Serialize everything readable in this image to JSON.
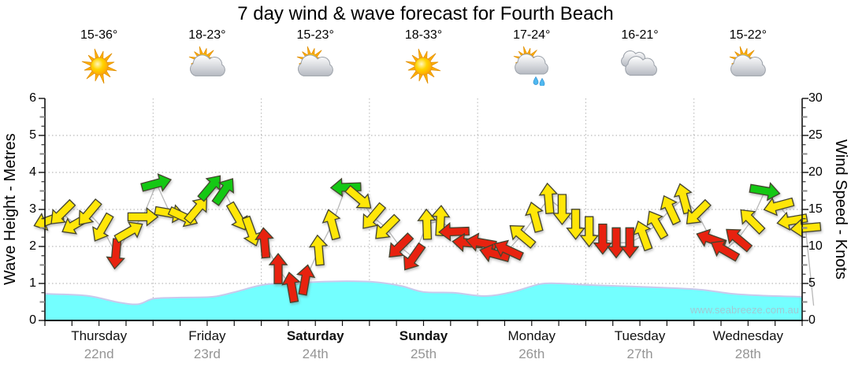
{
  "title": "7 day wind & wave forecast for Fourth Beach",
  "watermark": "www.seabreeze.com.au",
  "axes": {
    "left_title": "Wave Height - Metres",
    "right_title": "Wind Speed - Knots",
    "left_tick_labels": [
      "6",
      "5",
      "4",
      "3",
      "2",
      "1",
      "0"
    ],
    "right_tick_labels": [
      "30",
      "25",
      "20",
      "15",
      "10",
      "5",
      "0"
    ]
  },
  "days": [
    {
      "name": "Thursday",
      "date": "22nd",
      "temp": "15-36°",
      "icon": "sunny",
      "bold": false
    },
    {
      "name": "Friday",
      "date": "23rd",
      "temp": "18-23°",
      "icon": "partly-cloudy",
      "bold": false
    },
    {
      "name": "Saturday",
      "date": "24th",
      "temp": "15-23°",
      "icon": "partly-cloudy",
      "bold": true
    },
    {
      "name": "Sunday",
      "date": "25th",
      "temp": "18-33°",
      "icon": "sunny",
      "bold": true
    },
    {
      "name": "Monday",
      "date": "26th",
      "temp": "17-24°",
      "icon": "sun-shower",
      "bold": false
    },
    {
      "name": "Tuesday",
      "date": "27th",
      "temp": "16-21°",
      "icon": "cloudy",
      "bold": false
    },
    {
      "name": "Wednesday",
      "date": "28th",
      "temp": "15-22°",
      "icon": "partly-cloudy",
      "bold": false
    }
  ],
  "chart_data": {
    "type": "area+wind-arrows",
    "title": "7 day wind & wave forecast for Fourth Beach",
    "left_axis": {
      "label": "Wave Height - Metres",
      "range": [
        0,
        6
      ],
      "unit": "m",
      "gridlines": [
        1,
        2,
        3,
        4,
        5
      ]
    },
    "right_axis": {
      "label": "Wind Speed - Knots",
      "range": [
        0,
        30
      ],
      "unit": "kn"
    },
    "x_axis": {
      "day_labels": [
        "Thursday 22nd",
        "Friday 23rd",
        "Saturday 24th",
        "Sunday 25th",
        "Monday 26th",
        "Tuesday 27th",
        "Wednesday 28th"
      ],
      "minor_ticks_per_day": 4
    },
    "wave_height_m_series_t01": [
      [
        0.0,
        0.72
      ],
      [
        0.055,
        0.67
      ],
      [
        0.097,
        0.49
      ],
      [
        0.123,
        0.44
      ],
      [
        0.144,
        0.59
      ],
      [
        0.18,
        0.62
      ],
      [
        0.222,
        0.64
      ],
      [
        0.253,
        0.78
      ],
      [
        0.291,
        0.97
      ],
      [
        0.347,
        1.03
      ],
      [
        0.399,
        1.06
      ],
      [
        0.44,
        1.03
      ],
      [
        0.471,
        0.93
      ],
      [
        0.5,
        0.77
      ],
      [
        0.539,
        0.75
      ],
      [
        0.581,
        0.66
      ],
      [
        0.617,
        0.77
      ],
      [
        0.653,
        0.98
      ],
      [
        0.679,
        1.0
      ],
      [
        0.716,
        0.96
      ],
      [
        0.773,
        0.92
      ],
      [
        0.836,
        0.87
      ],
      [
        0.872,
        0.82
      ],
      [
        0.908,
        0.72
      ],
      [
        0.95,
        0.67
      ],
      [
        1.0,
        0.64
      ]
    ],
    "wind_arrow_format": "[day_index, slot_of_8, knots, direction_deg_cw_from_up, color(y/r/g, line=polyline-only)]",
    "wind_arrows": [
      [
        0,
        0,
        13.5,
        250,
        "y"
      ],
      [
        0,
        1,
        14.5,
        225,
        "y"
      ],
      [
        0,
        2,
        13,
        240,
        "y"
      ],
      [
        0,
        3,
        14.5,
        220,
        "y"
      ],
      [
        0,
        4,
        12.5,
        210,
        "y"
      ],
      [
        0,
        5,
        9,
        185,
        "r"
      ],
      [
        0,
        6,
        12,
        60,
        "y"
      ],
      [
        0,
        7,
        14,
        90,
        "y"
      ],
      [
        1,
        0,
        18.5,
        75,
        "g"
      ],
      [
        1,
        1,
        14.5,
        100,
        "y"
      ],
      [
        1,
        2,
        14,
        115,
        "y"
      ],
      [
        1,
        3,
        15,
        40,
        "y"
      ],
      [
        1,
        4,
        18,
        40,
        "g"
      ],
      [
        1,
        5,
        17.5,
        35,
        "g"
      ],
      [
        1,
        6,
        14,
        150,
        "y"
      ],
      [
        1,
        7,
        12,
        160,
        "y"
      ],
      [
        2,
        0,
        10.5,
        355,
        "r"
      ],
      [
        2,
        1,
        7,
        0,
        "r"
      ],
      [
        2,
        2,
        4.5,
        350,
        "r"
      ],
      [
        2,
        3,
        5.5,
        10,
        "r"
      ],
      [
        2,
        4,
        9.5,
        355,
        "y"
      ],
      [
        2,
        5,
        13,
        345,
        "y"
      ],
      [
        2,
        6,
        18,
        268,
        "g"
      ],
      [
        2,
        7,
        16.5,
        130,
        "y"
      ],
      [
        3,
        0,
        14,
        220,
        "y"
      ],
      [
        3,
        1,
        12.5,
        225,
        "y"
      ],
      [
        3,
        2,
        10,
        225,
        "r"
      ],
      [
        3,
        3,
        8.5,
        215,
        "r"
      ],
      [
        3,
        4,
        13,
        358,
        "y"
      ],
      [
        3,
        5,
        13.5,
        3,
        "y"
      ],
      [
        3,
        6,
        12,
        268,
        "r"
      ],
      [
        3,
        7,
        10.5,
        275,
        "r"
      ],
      [
        4,
        0,
        10.5,
        280,
        "r"
      ],
      [
        4,
        1,
        9,
        285,
        "r"
      ],
      [
        4,
        2,
        9.5,
        295,
        "r"
      ],
      [
        4,
        3,
        11.5,
        310,
        "y"
      ],
      [
        4,
        4,
        14,
        345,
        "y"
      ],
      [
        4,
        5,
        16.5,
        355,
        "y"
      ],
      [
        4,
        6,
        15,
        180,
        "y"
      ],
      [
        4,
        7,
        13,
        180,
        "y"
      ],
      [
        5,
        0,
        12,
        180,
        "y"
      ],
      [
        5,
        1,
        11,
        180,
        "r"
      ],
      [
        5,
        2,
        10.5,
        180,
        "r"
      ],
      [
        5,
        3,
        10.5,
        180,
        "r"
      ],
      [
        5,
        4,
        11.5,
        340,
        "y"
      ],
      [
        5,
        5,
        13,
        330,
        "y"
      ],
      [
        5,
        6,
        15,
        335,
        "y"
      ],
      [
        5,
        7,
        16.5,
        345,
        "y"
      ],
      [
        6,
        0,
        14.5,
        225,
        "y"
      ],
      [
        6,
        1,
        11,
        290,
        "r"
      ],
      [
        6,
        2,
        9.5,
        300,
        "r"
      ],
      [
        6,
        3,
        11,
        310,
        "r"
      ],
      [
        6,
        4,
        13.5,
        315,
        "y"
      ],
      [
        6,
        5,
        17.5,
        100,
        "g"
      ],
      [
        6,
        6,
        15.5,
        255,
        "y"
      ],
      [
        6,
        7,
        13.5,
        260,
        "y"
      ],
      [
        6,
        8,
        12.5,
        265,
        "y"
      ],
      [
        6,
        8.6,
        2,
        0,
        "line"
      ]
    ],
    "colors": {
      "arrow_yellow": "#FFE608",
      "arrow_red": "#E8220F",
      "arrow_green": "#14C814",
      "arrow_outline": "#44442E",
      "wave_fill": "#73FFFF",
      "wave_edge": "#C9C9EC",
      "grid": "#AAAAAA",
      "wind_line": "#B8B8B8"
    }
  }
}
